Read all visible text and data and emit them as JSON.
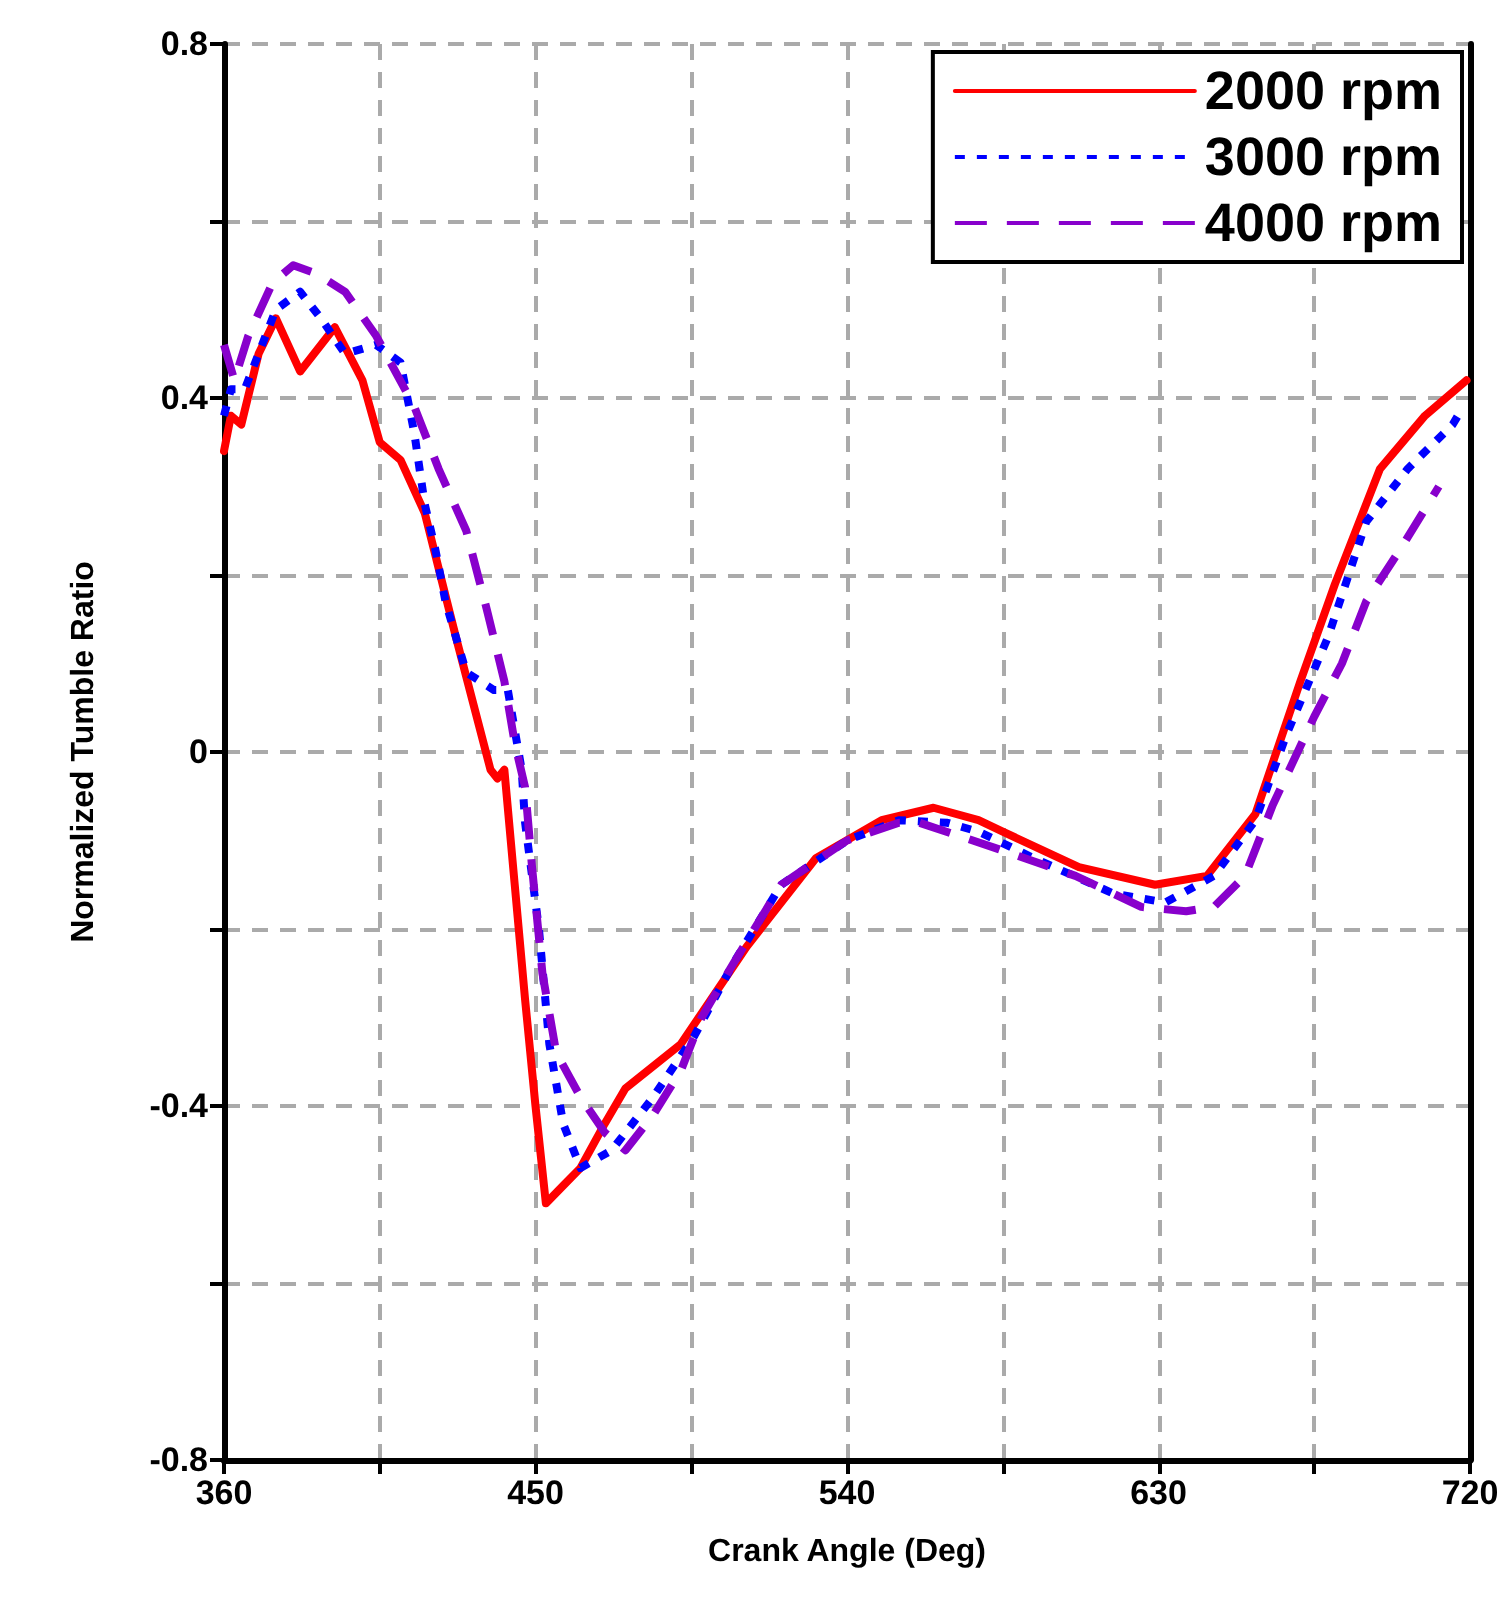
{
  "chart_data": {
    "type": "line",
    "xlabel": "Crank Angle (Deg)",
    "ylabel": "Normalized Tumble Ratio",
    "xlim": [
      360,
      720
    ],
    "xticks": [
      360,
      {
        "value": 405,
        "label": null
      },
      450,
      {
        "value": 495,
        "label": null
      },
      540,
      {
        "value": 585,
        "label": null
      },
      630,
      {
        "value": 675,
        "label": null
      },
      720
    ],
    "ylim": [
      -0.8,
      0.8
    ],
    "yticks": [
      -0.8,
      {
        "value": -0.6,
        "label": null
      },
      -0.4,
      {
        "value": -0.2,
        "label": null
      },
      0,
      {
        "value": 0.2,
        "label": null
      },
      0.4,
      {
        "value": 0.6,
        "label": null
      },
      0.8
    ],
    "grid": true,
    "legend": "top right",
    "marker": "none",
    "series": [
      {
        "name": "2000 rpm",
        "color": "#ff0000",
        "line_style": "solid",
        "x": [
          360,
          362,
          365,
          370,
          375,
          382,
          392,
          400,
          405,
          411,
          418,
          427,
          437,
          439,
          441,
          444,
          447,
          450,
          453,
          458,
          463,
          470,
          476,
          492,
          511,
          531,
          550,
          565,
          578,
          585,
          607,
          629,
          644,
          658,
          671,
          681,
          694,
          707,
          719
        ],
        "values": [
          0.34,
          0.38,
          0.37,
          0.45,
          0.49,
          0.43,
          0.48,
          0.42,
          0.35,
          0.33,
          0.27,
          0.13,
          -0.02,
          -0.03,
          -0.02,
          -0.15,
          -0.28,
          -0.4,
          -0.51,
          -0.49,
          -0.47,
          -0.42,
          -0.38,
          -0.33,
          -0.22,
          -0.12,
          -0.077,
          -0.063,
          -0.077,
          -0.09,
          -0.13,
          -0.15,
          -0.14,
          -0.07,
          0.08,
          0.19,
          0.32,
          0.38,
          0.42
        ]
      },
      {
        "name": "3000 rpm",
        "color": "#0000ff",
        "line_style": "dotted",
        "x": [
          360,
          362,
          366,
          375,
          382,
          388,
          395,
          404,
          411,
          415,
          418,
          421,
          424,
          430,
          438,
          442,
          446,
          447,
          451,
          454,
          458,
          463,
          472,
          484,
          496,
          507,
          521,
          540,
          555,
          569,
          578,
          594,
          617,
          632,
          646,
          658,
          667,
          679,
          690,
          702,
          715,
          718
        ],
        "values": [
          0.38,
          0.41,
          0.41,
          0.5,
          0.52,
          0.49,
          0.45,
          0.46,
          0.44,
          0.36,
          0.28,
          0.23,
          0.17,
          0.09,
          0.07,
          0.07,
          -0.02,
          -0.08,
          -0.2,
          -0.33,
          -0.42,
          -0.47,
          -0.45,
          -0.39,
          -0.32,
          -0.24,
          -0.15,
          -0.1,
          -0.077,
          -0.08,
          -0.09,
          -0.12,
          -0.16,
          -0.17,
          -0.14,
          -0.077,
          0.02,
          0.13,
          0.26,
          0.32,
          0.37,
          0.39
        ]
      },
      {
        "name": "4000 rpm",
        "color": "#8800cc",
        "line_style": "dashed",
        "x": [
          360,
          363,
          367,
          374,
          380,
          387,
          395,
          404,
          415,
          422,
          430,
          436,
          441,
          444,
          447,
          449,
          452,
          456,
          463,
          470,
          476,
          484,
          492,
          498,
          507,
          521,
          540,
          555,
          561,
          584,
          606,
          625,
          638,
          646,
          655,
          663,
          675,
          683,
          690,
          700,
          711
        ],
        "values": [
          0.46,
          0.42,
          0.47,
          0.53,
          0.55,
          0.54,
          0.52,
          0.47,
          0.39,
          0.32,
          0.25,
          0.16,
          0.08,
          0.01,
          -0.04,
          -0.13,
          -0.25,
          -0.34,
          -0.39,
          -0.43,
          -0.45,
          -0.41,
          -0.36,
          -0.3,
          -0.24,
          -0.15,
          -0.1,
          -0.08,
          -0.08,
          -0.11,
          -0.14,
          -0.175,
          -0.18,
          -0.175,
          -0.14,
          -0.06,
          0.04,
          0.1,
          0.17,
          0.23,
          0.3
        ]
      }
    ]
  }
}
